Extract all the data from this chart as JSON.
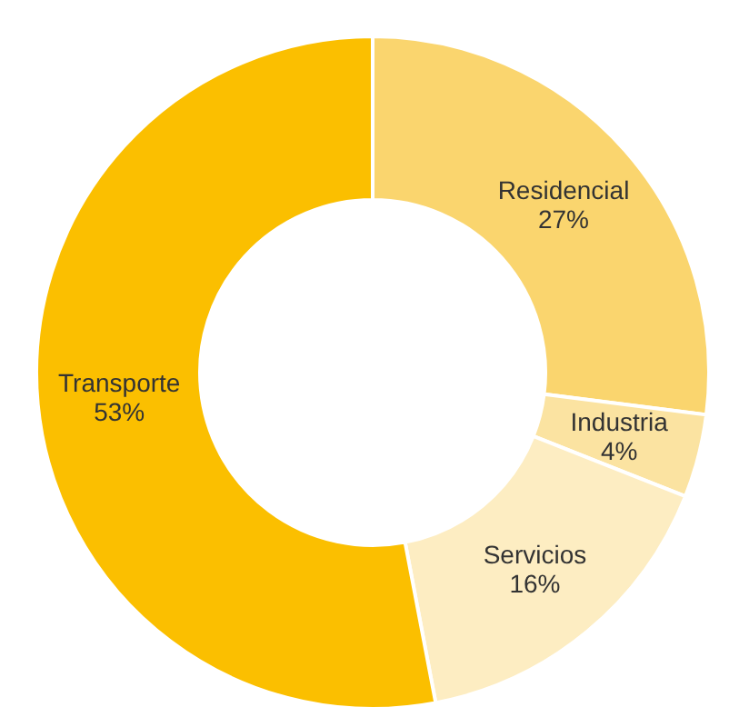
{
  "chart_data": {
    "type": "donut",
    "categories": [
      "Residencial",
      "Industria",
      "Servicios",
      "Transporte"
    ],
    "values": [
      27,
      4,
      16,
      53
    ],
    "value_labels": [
      "27%",
      "4%",
      "16%",
      "53%"
    ],
    "colors": [
      "#fad56e",
      "#fbe3a1",
      "#fdedc2",
      "#fbbf00"
    ],
    "legend": false
  }
}
